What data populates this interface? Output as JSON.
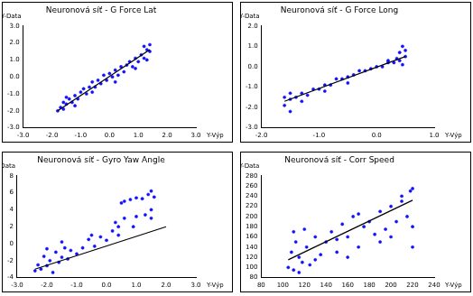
{
  "chart_data": [
    {
      "type": "scatter",
      "title": "Neuronová síť - G Force Lat",
      "x_label": "Y-Výp",
      "y_label": "Y-Data",
      "grid": false,
      "xlim": [
        -3,
        3
      ],
      "xticks": [
        {
          "value": -3,
          "label": "-3.0"
        },
        {
          "value": -2,
          "label": "-2.0"
        },
        {
          "value": -1,
          "label": "-1.0"
        },
        {
          "value": 0,
          "label": "0.0"
        },
        {
          "value": 1,
          "label": "1.0"
        },
        {
          "value": 2,
          "label": "2.0"
        },
        {
          "value": 3,
          "label": "3.0"
        }
      ],
      "ylim": [
        -3,
        3
      ],
      "yticks": [
        {
          "value": -3,
          "label": "-3.0"
        },
        {
          "value": -2,
          "label": "-2.0"
        },
        {
          "value": -1,
          "label": "-1.0"
        },
        {
          "value": 0,
          "label": "0.0"
        },
        {
          "value": 1,
          "label": "1.0"
        },
        {
          "value": 2,
          "label": "2.0"
        },
        {
          "value": 3,
          "label": "3.0"
        }
      ],
      "series": [
        {
          "type": "scatter",
          "color": "#1010ff",
          "marker": "circle",
          "x": [
            -1.8,
            -1.7,
            -1.6,
            -1.6,
            -1.5,
            -1.4,
            -1.3,
            -1.2,
            -1.1,
            -1.0,
            -0.9,
            -0.8,
            -0.7,
            -0.6,
            -0.5,
            -0.4,
            -0.3,
            -0.2,
            -0.1,
            0.0,
            0.1,
            0.2,
            0.3,
            0.4,
            0.5,
            0.6,
            0.7,
            0.8,
            0.9,
            1.0,
            1.1,
            1.2,
            1.3,
            1.3,
            1.4,
            1.4,
            -1.2,
            -0.6,
            0.2,
            0.9,
            1.2,
            -1.5
          ],
          "values": [
            -2.0,
            -1.8,
            -1.9,
            -1.5,
            -1.6,
            -1.3,
            -1.5,
            -1.1,
            -1.3,
            -0.9,
            -0.7,
            -1.0,
            -0.6,
            -0.3,
            -0.6,
            -0.2,
            -0.4,
            0.1,
            -0.2,
            0.2,
            0.0,
            0.4,
            0.1,
            0.6,
            0.3,
            0.7,
            0.9,
            0.6,
            1.1,
            0.9,
            1.3,
            1.1,
            1.6,
            1.0,
            1.9,
            1.5,
            -1.7,
            -0.9,
            -0.3,
            0.5,
            1.8,
            -1.2
          ]
        },
        {
          "type": "line",
          "color": "#000000",
          "line_style": "solid",
          "x": [
            -1.8,
            1.4
          ],
          "values": [
            -2.0,
            1.6
          ]
        }
      ]
    },
    {
      "type": "scatter",
      "title": "Neuronová síť - G Force Long",
      "x_label": "Y-Výp",
      "y_label": "Y-Data",
      "grid": false,
      "xlim": [
        -2,
        1
      ],
      "xticks": [
        {
          "value": -2,
          "label": "-2.0"
        },
        {
          "value": -1,
          "label": "-1.0"
        },
        {
          "value": 0,
          "label": "0.0"
        },
        {
          "value": 1,
          "label": "1.0"
        }
      ],
      "ylim": [
        -3,
        2
      ],
      "yticks": [
        {
          "value": -3,
          "label": "-3.0"
        },
        {
          "value": -2,
          "label": "-2.0"
        },
        {
          "value": -1,
          "label": "-1.0"
        },
        {
          "value": 0,
          "label": "0.0"
        },
        {
          "value": 1,
          "label": "1.0"
        },
        {
          "value": 2,
          "label": "2.0"
        }
      ],
      "series": [
        {
          "type": "scatter",
          "color": "#1010ff",
          "marker": "circle",
          "x": [
            -1.6,
            -1.6,
            -1.5,
            -1.5,
            -1.4,
            -1.3,
            -1.2,
            -1.1,
            -1.0,
            -0.9,
            -0.8,
            -0.7,
            -0.6,
            -0.5,
            -0.4,
            -0.3,
            -0.2,
            -0.1,
            0.0,
            0.1,
            0.2,
            0.3,
            0.35,
            0.4,
            0.4,
            0.45,
            0.5,
            0.5,
            -1.3,
            -0.9,
            -0.5,
            0.2,
            -1.5,
            0.45
          ],
          "values": [
            -1.9,
            -1.5,
            -1.6,
            -2.2,
            -1.5,
            -1.3,
            -1.4,
            -1.1,
            -1.1,
            -0.9,
            -0.9,
            -0.6,
            -0.6,
            -0.5,
            -0.4,
            -0.2,
            -0.2,
            -0.1,
            0.0,
            0.0,
            0.2,
            0.2,
            0.4,
            0.3,
            0.7,
            1.0,
            0.5,
            0.8,
            -1.7,
            -1.2,
            -0.8,
            0.3,
            -1.3,
            0.1
          ]
        },
        {
          "type": "line",
          "color": "#000000",
          "line_style": "solid",
          "x": [
            -1.6,
            0.5
          ],
          "values": [
            -1.7,
            0.5
          ]
        }
      ]
    },
    {
      "type": "scatter",
      "title": "Neuronová síť - Gyro Yaw Angle",
      "x_label": "Y-Výp",
      "y_label": "Y-Data",
      "grid": false,
      "xlim": [
        -3,
        3
      ],
      "xticks": [
        {
          "value": -3,
          "label": "-3.0"
        },
        {
          "value": -2,
          "label": "-2.0"
        },
        {
          "value": -1,
          "label": "-1.0"
        },
        {
          "value": 0,
          "label": "0.0"
        },
        {
          "value": 1,
          "label": "1.0"
        },
        {
          "value": 2,
          "label": "2.0"
        },
        {
          "value": 3,
          "label": "3.0"
        }
      ],
      "ylim": [
        -4,
        8
      ],
      "yticks": [
        -4,
        -2,
        0,
        2,
        4,
        6,
        8
      ],
      "series": [
        {
          "type": "scatter",
          "color": "#1010ff",
          "marker": "circle",
          "x": [
            -2.4,
            -2.3,
            -2.2,
            -2.1,
            -2.0,
            -1.9,
            -1.8,
            -1.7,
            -1.6,
            -1.5,
            -1.4,
            -1.3,
            -1.2,
            -1.0,
            -0.8,
            -0.6,
            -0.4,
            -0.2,
            0.0,
            0.2,
            0.4,
            0.5,
            0.6,
            0.8,
            1.0,
            1.2,
            1.4,
            1.5,
            1.5,
            1.3,
            1.0,
            0.6,
            0.3,
            1.6,
            1.5,
            -2.0,
            -1.5,
            -0.5,
            0.4,
            0.9
          ],
          "values": [
            -3.2,
            -2.5,
            -3.0,
            -1.5,
            -2.6,
            -2.0,
            -3.4,
            -1.0,
            -2.2,
            -1.6,
            -0.5,
            -1.8,
            -0.8,
            -1.2,
            -0.5,
            0.5,
            -0.3,
            0.8,
            0.4,
            1.5,
            2.0,
            4.8,
            5.0,
            5.2,
            5.4,
            5.3,
            5.8,
            6.2,
            4.0,
            3.4,
            3.2,
            3.0,
            2.5,
            5.5,
            3.0,
            -0.6,
            0.2,
            1.0,
            1.0,
            2.0
          ]
        },
        {
          "type": "line",
          "color": "#000000",
          "line_style": "solid",
          "x": [
            -2.4,
            2.0
          ],
          "values": [
            -3.0,
            2.0
          ]
        }
      ]
    },
    {
      "type": "scatter",
      "title": "Neuronová síť - Corr Speed",
      "x_label": "Y-Výp",
      "y_label": "Y-Data",
      "grid": false,
      "xlim": [
        80,
        240
      ],
      "xticks": [
        80,
        100,
        120,
        140,
        160,
        180,
        200,
        220,
        240
      ],
      "ylim": [
        80,
        280
      ],
      "yticks": [
        80,
        100,
        120,
        140,
        160,
        180,
        200,
        220,
        240,
        260,
        280
      ],
      "series": [
        {
          "type": "scatter",
          "color": "#1010ff",
          "marker": "circle",
          "x": [
            105,
            108,
            110,
            112,
            115,
            118,
            120,
            122,
            125,
            130,
            135,
            140,
            145,
            150,
            155,
            160,
            165,
            170,
            175,
            180,
            185,
            190,
            195,
            200,
            205,
            210,
            215,
            218,
            220,
            220,
            220,
            110,
            115,
            130,
            150,
            170,
            190,
            210,
            200,
            160
          ],
          "values": [
            100,
            130,
            95,
            150,
            120,
            110,
            175,
            140,
            105,
            160,
            125,
            150,
            170,
            130,
            185,
            160,
            200,
            140,
            180,
            190,
            165,
            210,
            175,
            220,
            190,
            240,
            200,
            250,
            255,
            180,
            140,
            170,
            90,
            115,
            155,
            205,
            150,
            230,
            160,
            120
          ]
        },
        {
          "type": "line",
          "color": "#000000",
          "line_style": "solid",
          "x": [
            105,
            220
          ],
          "values": [
            115,
            232
          ]
        }
      ]
    }
  ]
}
